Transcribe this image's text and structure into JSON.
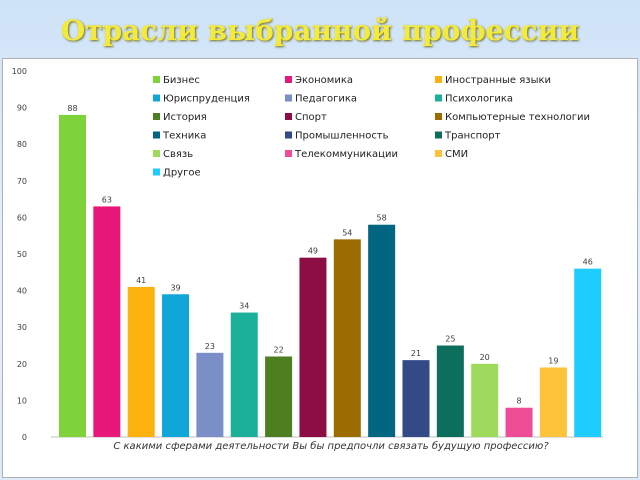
{
  "slide": {
    "title": "Отрасли выбранной профессии"
  },
  "chart_data": {
    "type": "bar",
    "title": "Отрасли выбранной профессии",
    "xlabel": "С какими сферами деятельности Вы бы предпочли связать будущую профессию?",
    "ylabel": "",
    "ylim": [
      0,
      100
    ],
    "yticks": [
      0,
      10,
      20,
      30,
      40,
      50,
      60,
      70,
      80,
      90,
      100
    ],
    "grid": false,
    "legend_position": "top-right",
    "series": [
      {
        "name": "Бизнес",
        "value": 88,
        "color": "#7ed23a"
      },
      {
        "name": "Экономика",
        "value": 63,
        "color": "#e8177a"
      },
      {
        "name": "Иностранные языки",
        "value": 41,
        "color": "#fbb20e"
      },
      {
        "name": "Юриспруденция",
        "value": 39,
        "color": "#11a6d9"
      },
      {
        "name": "Педагогика",
        "value": 23,
        "color": "#7a8ec8"
      },
      {
        "name": "Психологика",
        "value": 34,
        "color": "#1cb09a"
      },
      {
        "name": "История",
        "value": 22,
        "color": "#4d7f20"
      },
      {
        "name": "Спорт",
        "value": 49,
        "color": "#8c0e45"
      },
      {
        "name": "Компьютерные технологии",
        "value": 54,
        "color": "#9c6c00"
      },
      {
        "name": "Техника",
        "value": 58,
        "color": "#006682"
      },
      {
        "name": "Промышленность",
        "value": 21,
        "color": "#334a86"
      },
      {
        "name": "Транспорт",
        "value": 25,
        "color": "#0e6e5e"
      },
      {
        "name": "Связь",
        "value": 20,
        "color": "#9edb5c"
      },
      {
        "name": "Телекоммуникации",
        "value": 8,
        "color": "#ee4c95"
      },
      {
        "name": "СМИ",
        "value": 19,
        "color": "#fec33a"
      },
      {
        "name": "Другое",
        "value": 46,
        "color": "#1ecdfd"
      }
    ]
  }
}
